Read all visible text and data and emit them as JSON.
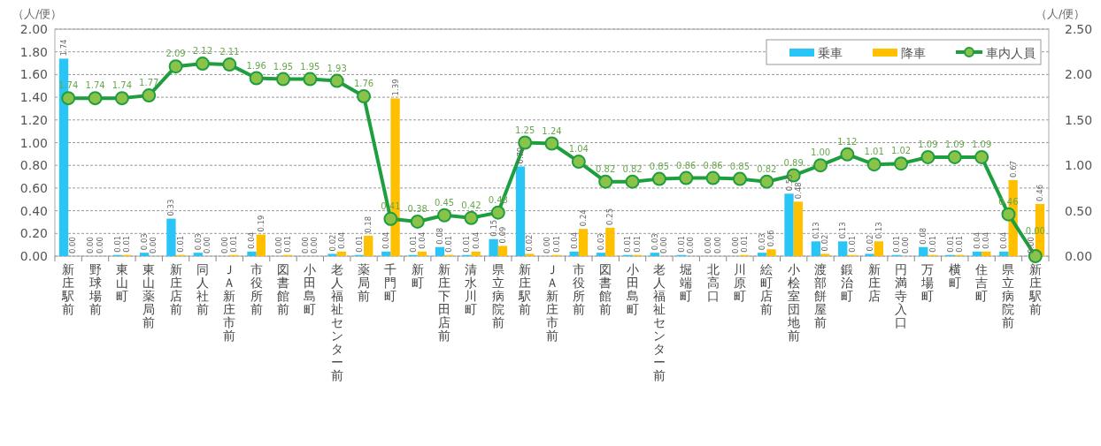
{
  "chart_data": {
    "type": "bar",
    "ylabel": "（人/便）",
    "y2label": "（人/便）",
    "categories": [
      "新庄駅前",
      "野球場前",
      "東山町",
      "東山薬局前",
      "新庄店前",
      "同人社前",
      "ＪＡ新庄市前",
      "市役所前",
      "図書館前",
      "小田島町",
      "老人福祉センター前",
      "薬局前",
      "千門町",
      "新町",
      "新庄下田店前",
      "清水川町",
      "県立病院前",
      "新庄駅前",
      "ＪＡ新庄市前",
      "市役所前",
      "図書館前",
      "小田島町",
      "老人福祉センター前",
      "堀端町",
      "北高口",
      "川原町",
      "絵町店前",
      "小桧室団地前",
      "渡部餅屋前",
      "鍛治町",
      "新庄店",
      "円満寺入口",
      "万場町",
      "横町",
      "住吉町",
      "県立病院前",
      "新庄駅前"
    ],
    "series": [
      {
        "name": "乗車",
        "color": "#29c5f6",
        "values": [
          1.74,
          0.0,
          0.01,
          0.03,
          0.33,
          0.03,
          0.0,
          0.04,
          0.0,
          0.0,
          0.02,
          0.01,
          0.04,
          0.01,
          0.08,
          0.01,
          0.15,
          0.79,
          0.0,
          0.04,
          0.03,
          0.01,
          0.03,
          0.01,
          0.0,
          0.0,
          0.03,
          0.55,
          0.13,
          0.13,
          0.02,
          0.01,
          0.08,
          0.01,
          0.04,
          0.04,
          0.0
        ],
        "value_labels": [
          "1.74",
          "0.00",
          "0.01",
          "0.03",
          "0.33",
          "0.03",
          "0.00",
          "0.04",
          "0.00",
          "0.00",
          "0.02",
          "0.01",
          "0.04",
          "0.01",
          "0.08",
          "0.01",
          "0.15",
          "0.79",
          "0.00",
          "0.04",
          "0.03",
          "0.01",
          "0.03",
          "0.01",
          "0.00",
          "0.00",
          "0.03",
          "0.55",
          "0.13",
          "0.13",
          "0.02",
          "0.01",
          "0.08",
          "0.01",
          "0.04",
          "0.04",
          "0.00"
        ]
      },
      {
        "name": "降車",
        "color": "#ffc000",
        "values": [
          0.0,
          0.0,
          0.01,
          0.0,
          0.01,
          0.0,
          0.01,
          0.19,
          0.01,
          0.0,
          0.04,
          0.18,
          1.39,
          0.04,
          0.01,
          0.04,
          0.09,
          0.02,
          0.01,
          0.24,
          0.25,
          0.01,
          0.0,
          0.0,
          0.0,
          0.01,
          0.06,
          0.48,
          0.02,
          0.01,
          0.13,
          0.0,
          0.01,
          0.01,
          0.04,
          0.67,
          0.46
        ],
        "value_labels": [
          "0.00",
          "0.00",
          "0.01",
          "0.00",
          "0.01",
          "0.00",
          "0.01",
          "0.19",
          "0.01",
          "0.00",
          "0.04",
          "0.18",
          "1.39",
          "0.04",
          "0.01",
          "0.04",
          "0.09",
          "0.02",
          "0.01",
          "0.24",
          "0.25",
          "0.01",
          "0.00",
          "0.00",
          "0.00",
          "0.01",
          "0.06",
          "0.48",
          "0.02",
          "0.01",
          "0.13",
          "0.00",
          "0.01",
          "0.01",
          "0.04",
          "0.67",
          "0.46"
        ]
      },
      {
        "name": "車内人員",
        "type": "line",
        "axis": "y2",
        "color": "#1e9e3e",
        "values": [
          1.74,
          1.74,
          1.74,
          1.77,
          2.09,
          2.12,
          2.11,
          1.96,
          1.95,
          1.95,
          1.93,
          1.76,
          0.41,
          0.38,
          0.45,
          0.42,
          0.48,
          1.25,
          1.24,
          1.04,
          0.82,
          0.82,
          0.85,
          0.86,
          0.86,
          0.85,
          0.82,
          0.89,
          1.0,
          1.12,
          1.01,
          1.02,
          1.09,
          1.09,
          1.09,
          0.46,
          0.0
        ],
        "value_labels": [
          "1.74",
          "1.74",
          "1.74",
          "1.77",
          "2.09",
          "2.12",
          "2.11",
          "1.96",
          "1.95",
          "1.95",
          "1.93",
          "1.76",
          "0.41",
          "0.38",
          "0.45",
          "0.42",
          "0.48",
          "1.25",
          "1.24",
          "1.04",
          "0.82",
          "0.82",
          "0.85",
          "0.86",
          "0.86",
          "0.85",
          "0.82",
          "0.89",
          "1.00",
          "1.12",
          "1.01",
          "1.02",
          "1.09",
          "1.09",
          "1.09",
          "0.46",
          "0.00"
        ]
      }
    ],
    "ylim": [
      0,
      2
    ],
    "yticks": [
      {
        "value": 0,
        "label": "0.00"
      },
      {
        "value": 0.2,
        "label": "0.20"
      },
      {
        "value": 0.4,
        "label": "0.40"
      },
      {
        "value": 0.6,
        "label": "0.60"
      },
      {
        "value": 0.8,
        "label": "0.80"
      },
      {
        "value": 1,
        "label": "1.00"
      },
      {
        "value": 1.2,
        "label": "1.20"
      },
      {
        "value": 1.4,
        "label": "1.40"
      },
      {
        "value": 1.6,
        "label": "1.60"
      },
      {
        "value": 1.8,
        "label": "1.80"
      },
      {
        "value": 2,
        "label": "2.00"
      }
    ],
    "y2lim": [
      0,
      2.5
    ],
    "y2ticks": [
      {
        "value": 0,
        "label": "0.00"
      },
      {
        "value": 0.5,
        "label": "0.50"
      },
      {
        "value": 1,
        "label": "1.00"
      },
      {
        "value": 1.5,
        "label": "1.50"
      },
      {
        "value": 2,
        "label": "2.00"
      },
      {
        "value": 2.5,
        "label": "2.50"
      }
    ],
    "grid": "y",
    "legend": "top right",
    "marker": "circle",
    "line_style": "solid"
  }
}
